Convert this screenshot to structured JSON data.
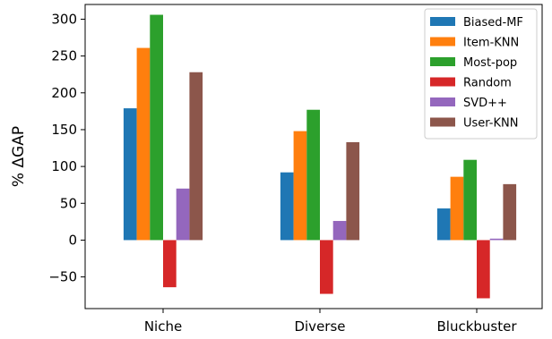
{
  "chart_data": {
    "type": "bar",
    "categories": [
      "Niche",
      "Diverse",
      "Bluckbuster"
    ],
    "ylabel": "% ΔGAP",
    "xlabel": "",
    "ylim": [
      -93,
      320
    ],
    "yticks": [
      -50,
      0,
      50,
      100,
      150,
      200,
      250,
      300
    ],
    "grid": false,
    "legend_position": "top-right",
    "series": [
      {
        "name": "Biased-MF",
        "color": "#1f77b4",
        "values": [
          179,
          92,
          43
        ]
      },
      {
        "name": "Item-KNN",
        "color": "#ff7f0e",
        "values": [
          261,
          148,
          86
        ]
      },
      {
        "name": "Most-pop",
        "color": "#2ca02c",
        "values": [
          306,
          177,
          109
        ]
      },
      {
        "name": "Random",
        "color": "#d62728",
        "values": [
          -64,
          -73,
          -79
        ]
      },
      {
        "name": "SVD++",
        "color": "#9467bd",
        "values": [
          70,
          26,
          2
        ]
      },
      {
        "name": "User-KNN",
        "color": "#8c564b",
        "values": [
          228,
          133,
          76
        ]
      }
    ]
  }
}
